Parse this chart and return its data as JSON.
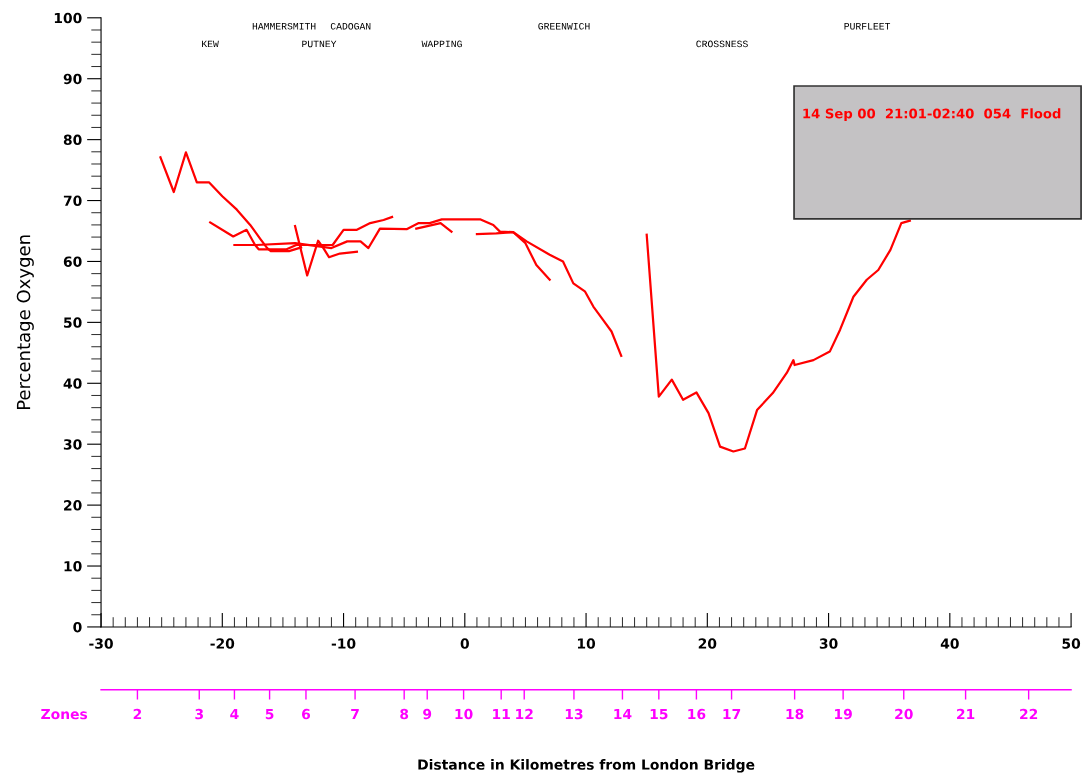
{
  "chart_data": {
    "type": "line",
    "ylabel": "Percentage Oxygen",
    "xlim": [
      -30,
      50
    ],
    "xticks": [
      -30,
      -20,
      -10,
      0,
      10,
      20,
      30,
      40,
      50
    ],
    "ylim": [
      0,
      100
    ],
    "yticks": [
      0,
      10,
      20,
      30,
      40,
      50,
      60,
      70,
      80,
      90,
      100
    ],
    "grid": false,
    "legend": false,
    "marker": "none",
    "line_style": "solid",
    "annotations": [
      "HAMMERSMITH",
      "CADOGAN",
      "GREENWICH",
      "PURFLEET",
      "KEW",
      "PUTNEY",
      "WAPPING",
      "CROSSNESS",
      "Zones",
      "2",
      "3",
      "4",
      "5",
      "6",
      "7",
      "8",
      "9",
      "10",
      "11",
      "12",
      "13",
      "14",
      "15",
      "16",
      "17",
      "18",
      "19",
      "20",
      "21",
      "22",
      "Distance in Kilometres from London Bridge",
      "14 Sep 00  21:01-02:40  054  Flood"
    ],
    "series": [
      {
        "color": "#ff0000",
        "x": [
          -25.1,
          -24.0,
          -23.0,
          -22.1,
          -21.1,
          -20.0,
          -18.8,
          -17.7,
          -16.9,
          -16.3,
          -16.0,
          -14.5,
          -13.5
        ],
        "values": [
          77.1,
          71.4,
          77.9,
          73.0,
          73.0,
          70.7,
          68.5,
          66.0,
          63.8,
          62.2,
          61.7,
          61.7,
          62.3
        ]
      },
      {
        "color": "#ff0000",
        "x": [
          -21.0,
          -19.1,
          -18.0,
          -17.3,
          -17.0,
          -14.7,
          -13.9,
          -11.9,
          -10.9,
          -10.0,
          -8.9,
          -7.8,
          -6.7,
          -6.0
        ],
        "values": [
          66.4,
          64.1,
          65.2,
          62.7,
          62.0,
          62.0,
          62.7,
          62.7,
          62.7,
          65.2,
          65.2,
          66.3,
          66.8,
          67.3
        ]
      },
      {
        "color": "#ff0000",
        "x": [
          -19.0,
          -17.2,
          -14.0,
          -11.0,
          -9.7,
          -8.6,
          -7.95,
          -7.0,
          -4.8,
          -3.8,
          -2.9,
          -1.9,
          1.3,
          2.35,
          2.9,
          4.0,
          5.1,
          7.0,
          8.1,
          8.95,
          9.9,
          10.6,
          11.4,
          12.1,
          12.9
        ],
        "values": [
          62.7,
          62.7,
          63.0,
          62.2,
          63.3,
          63.3,
          62.2,
          65.4,
          65.3,
          66.3,
          66.3,
          66.9,
          66.9,
          66.0,
          64.9,
          64.8,
          63.3,
          61.1,
          60.0,
          56.4,
          55.1,
          52.6,
          50.4,
          48.5,
          44.5
        ]
      },
      {
        "color": "#ff0000",
        "x": [
          -14.0,
          -13.0,
          -12.1,
          -11.7,
          -11.2,
          -10.3,
          -8.9
        ],
        "values": [
          65.8,
          57.7,
          63.4,
          62.3,
          60.7,
          61.3,
          61.6
        ]
      },
      {
        "color": "#ff0000",
        "x": [
          -4.0,
          -2.0,
          -1.1
        ],
        "values": [
          65.4,
          66.3,
          64.9
        ]
      },
      {
        "color": "#ff0000",
        "x": [
          1.0,
          2.6,
          4.0,
          5.0,
          5.9,
          7.0
        ],
        "values": [
          64.5,
          64.6,
          64.8,
          63.0,
          59.4,
          57.0
        ]
      },
      {
        "color": "#ff0000",
        "x": [
          15.0,
          16.0,
          17.07,
          18.0,
          19.1,
          20.1,
          21.05,
          22.15,
          23.1,
          24.1,
          25.4,
          26.55,
          27.1,
          27.2,
          28.75,
          30.1,
          30.95,
          32.05,
          33.15,
          34.1,
          35.1,
          36.0,
          36.7
        ],
        "values": [
          64.4,
          37.8,
          40.6,
          37.3,
          38.5,
          35.1,
          29.6,
          28.8,
          29.3,
          35.6,
          38.4,
          41.7,
          43.8,
          43.0,
          43.8,
          45.2,
          48.8,
          54.2,
          57.0,
          58.6,
          61.9,
          66.3,
          66.7
        ]
      }
    ]
  }
}
